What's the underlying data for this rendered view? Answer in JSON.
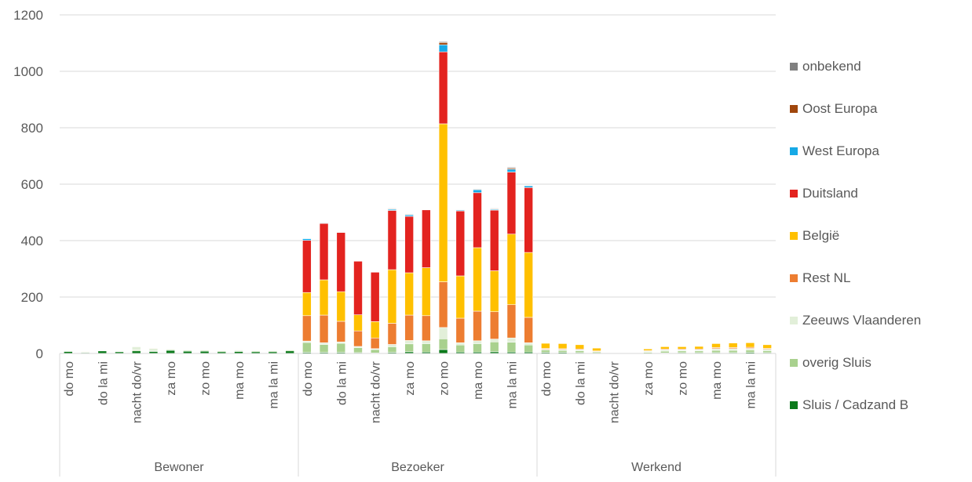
{
  "chart_data": {
    "type": "bar",
    "stacked": true,
    "ylim": [
      0,
      1200
    ],
    "yticks": [
      0,
      200,
      400,
      600,
      800,
      1000,
      1200
    ],
    "grid": true,
    "legend_position": "right",
    "groups": [
      {
        "label": "Bewoner",
        "start": 0,
        "count": 14
      },
      {
        "label": "Bezoeker",
        "start": 14,
        "count": 14
      },
      {
        "label": "Werkend",
        "start": 28,
        "count": 14
      }
    ],
    "category_labels": [
      "do mo",
      "",
      "do la mi",
      "",
      "nacht do/vr",
      "",
      "za mo",
      "",
      "zo mo",
      "",
      "ma mo",
      "",
      "ma la mi",
      "",
      "do mo",
      "",
      "do la mi",
      "",
      "nacht do/vr",
      "",
      "za mo",
      "",
      "zo mo",
      "",
      "ma mo",
      "",
      "ma la mi",
      "",
      "do mo",
      "",
      "do la mi",
      "",
      "nacht do/vr",
      "",
      "za mo",
      "",
      "zo mo",
      "",
      "ma mo",
      "",
      "ma la mi",
      ""
    ],
    "series": [
      {
        "name": "Sluis / Cadzand B",
        "color": "#0b7a1b",
        "values": [
          7,
          3,
          9,
          6,
          9,
          7,
          11,
          8,
          8,
          6,
          7,
          6,
          6,
          9,
          4,
          4,
          4,
          3,
          2,
          4,
          6,
          5,
          14,
          5,
          5,
          6,
          5,
          5,
          4,
          4,
          3,
          1,
          0,
          0,
          0,
          2,
          3,
          3,
          3,
          3,
          4,
          3
        ]
      },
      {
        "name": "overig Sluis",
        "color": "#a9d18e",
        "values": [
          2,
          2,
          2,
          2,
          3,
          3,
          3,
          3,
          3,
          3,
          3,
          3,
          3,
          3,
          35,
          28,
          32,
          18,
          12,
          20,
          28,
          30,
          38,
          25,
          30,
          35,
          35,
          25,
          8,
          7,
          7,
          4,
          0,
          0,
          4,
          6,
          6,
          6,
          8,
          8,
          8,
          7
        ]
      },
      {
        "name": "Zeeuws Vlaanderen",
        "color": "#e2efd9",
        "values": [
          2,
          2,
          2,
          2,
          12,
          8,
          2,
          2,
          2,
          2,
          2,
          2,
          2,
          2,
          5,
          6,
          5,
          4,
          3,
          8,
          12,
          10,
          40,
          8,
          10,
          10,
          15,
          8,
          3,
          3,
          3,
          2,
          0,
          0,
          4,
          5,
          4,
          4,
          6,
          6,
          6,
          5
        ]
      },
      {
        "name": "Rest NL",
        "color": "#ed7d31",
        "values": [
          1,
          1,
          1,
          1,
          1,
          1,
          1,
          1,
          1,
          1,
          1,
          1,
          1,
          1,
          90,
          98,
          73,
          55,
          38,
          75,
          90,
          89,
          162,
          87,
          105,
          97,
          118,
          90,
          3,
          3,
          3,
          2,
          0,
          0,
          2,
          3,
          3,
          3,
          4,
          4,
          4,
          3
        ]
      },
      {
        "name": "België",
        "color": "#ffc000",
        "values": [
          1,
          1,
          1,
          1,
          1,
          1,
          1,
          1,
          1,
          1,
          1,
          1,
          1,
          1,
          82,
          125,
          105,
          57,
          58,
          190,
          150,
          170,
          560,
          150,
          225,
          145,
          250,
          230,
          18,
          18,
          15,
          10,
          0,
          0,
          6,
          8,
          8,
          9,
          14,
          16,
          16,
          13
        ]
      },
      {
        "name": "Duitsland",
        "color": "#e3231f",
        "values": [
          0,
          0,
          0,
          0,
          0,
          0,
          0,
          0,
          0,
          0,
          0,
          0,
          0,
          0,
          185,
          200,
          210,
          190,
          175,
          210,
          200,
          205,
          255,
          230,
          195,
          215,
          220,
          230,
          0,
          0,
          0,
          0,
          0,
          0,
          0,
          0,
          0,
          0,
          0,
          0,
          0,
          0
        ]
      },
      {
        "name": "West Europa",
        "color": "#16a9e6",
        "values": [
          0,
          0,
          0,
          0,
          0,
          0,
          0,
          0,
          0,
          0,
          0,
          0,
          0,
          0,
          6,
          2,
          1,
          0,
          0,
          4,
          5,
          0,
          25,
          3,
          10,
          3,
          10,
          6,
          0,
          0,
          0,
          0,
          0,
          0,
          0,
          0,
          0,
          0,
          0,
          0,
          0,
          0
        ]
      },
      {
        "name": "Oost Europa",
        "color": "#a0460c",
        "values": [
          0,
          0,
          0,
          0,
          0,
          0,
          0,
          0,
          0,
          0,
          0,
          0,
          0,
          0,
          1,
          1,
          1,
          0,
          0,
          2,
          2,
          1,
          8,
          1,
          2,
          2,
          4,
          1,
          0,
          0,
          0,
          0,
          0,
          0,
          0,
          0,
          0,
          0,
          0,
          0,
          0,
          0
        ]
      },
      {
        "name": "onbekend",
        "color": "#808080",
        "values": [
          0,
          0,
          0,
          0,
          0,
          0,
          0,
          0,
          0,
          0,
          0,
          0,
          0,
          0,
          1,
          1,
          1,
          0,
          0,
          2,
          2,
          1,
          3,
          1,
          2,
          2,
          3,
          1,
          0,
          0,
          0,
          0,
          0,
          0,
          0,
          0,
          0,
          0,
          0,
          0,
          0,
          0
        ]
      }
    ]
  }
}
